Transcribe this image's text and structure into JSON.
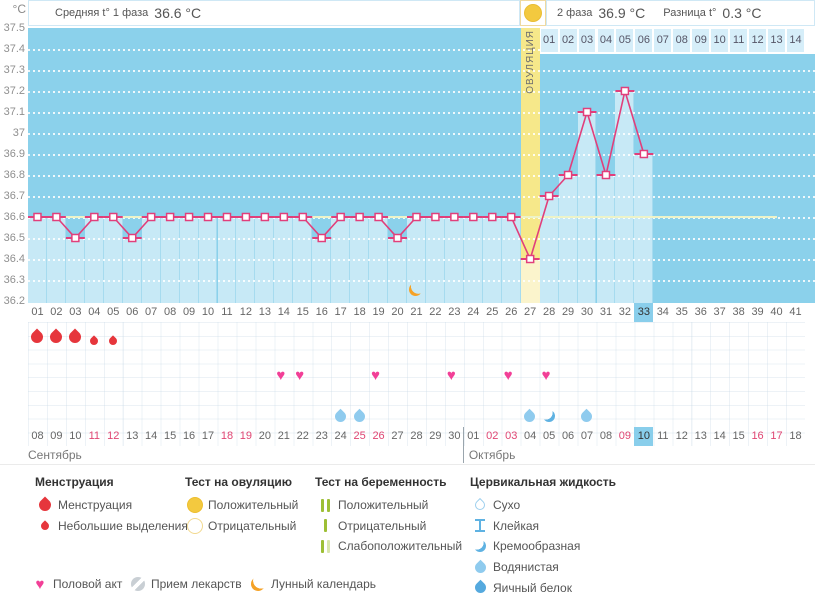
{
  "header": {
    "unit": "°C",
    "avg_phase1_label": "Средняя t° 1 фаза",
    "avg_phase1_value": "36.6 °C",
    "phase2_label": "2 фаза",
    "phase2_value": "36.9 °C",
    "diff_label": "Разница t°",
    "diff_value": "0.3 °C",
    "ovulation_label": "ОВУЛЯЦИЯ"
  },
  "chart_data": {
    "type": "line",
    "title": "Basal body temperature cycle chart",
    "ylabel": "°C",
    "ylim": [
      36.2,
      37.5
    ],
    "yticks": [
      "37.5",
      "37.4",
      "37.3",
      "37.2",
      "37.1",
      "37",
      "36.9",
      "36.8",
      "36.7",
      "36.6",
      "36.5",
      "36.4",
      "36.3",
      "36.2"
    ],
    "total_days": 41,
    "measured_days": 33,
    "values": [
      36.6,
      36.6,
      36.5,
      36.6,
      36.6,
      36.5,
      36.6,
      36.6,
      36.6,
      36.6,
      36.6,
      36.6,
      36.6,
      36.6,
      36.6,
      36.5,
      36.6,
      36.6,
      36.6,
      36.5,
      36.6,
      36.6,
      36.6,
      36.6,
      36.6,
      36.6,
      36.4,
      36.7,
      36.8,
      37.1,
      36.8,
      37.2,
      36.9
    ],
    "coverline_temp": 36.6,
    "ovulation_day": 27,
    "current_day": 33,
    "moon_day": 21,
    "cycle_day_labels": [
      "01",
      "02",
      "03",
      "04",
      "05",
      "06",
      "07",
      "08",
      "09",
      "10",
      "11",
      "12",
      "13",
      "14",
      "15",
      "16",
      "17",
      "18",
      "19",
      "20",
      "21",
      "22",
      "23",
      "24",
      "25",
      "26",
      "27",
      "28",
      "29",
      "30",
      "31",
      "32",
      "33",
      "34",
      "35",
      "36",
      "37",
      "38",
      "39",
      "40",
      "41"
    ],
    "phase2_labels": [
      "01",
      "02",
      "03",
      "04",
      "05",
      "06",
      "07",
      "08",
      "09",
      "10",
      "11",
      "12",
      "13",
      "14"
    ]
  },
  "events": {
    "menstruation_heavy_days": [
      1,
      2,
      3
    ],
    "menstruation_light_days": [
      4,
      5
    ],
    "intercourse_days": [
      14,
      15,
      19,
      23,
      26,
      28
    ],
    "cervical_fluid": [
      {
        "day": 17,
        "type": "watery"
      },
      {
        "day": 18,
        "type": "watery"
      },
      {
        "day": 27,
        "type": "watery"
      },
      {
        "day": 28,
        "type": "creamy"
      },
      {
        "day": 30,
        "type": "watery"
      }
    ]
  },
  "calendar": {
    "sep_label": "Сентябрь",
    "oct_label": "Октябрь",
    "dates": [
      {
        "t": "08"
      },
      {
        "t": "09"
      },
      {
        "t": "10"
      },
      {
        "t": "11",
        "w": 1
      },
      {
        "t": "12",
        "w": 1
      },
      {
        "t": "13"
      },
      {
        "t": "14"
      },
      {
        "t": "15"
      },
      {
        "t": "16"
      },
      {
        "t": "17"
      },
      {
        "t": "18",
        "w": 1
      },
      {
        "t": "19",
        "w": 1
      },
      {
        "t": "20"
      },
      {
        "t": "21"
      },
      {
        "t": "22"
      },
      {
        "t": "23"
      },
      {
        "t": "24"
      },
      {
        "t": "25",
        "w": 1
      },
      {
        "t": "26",
        "w": 1
      },
      {
        "t": "27"
      },
      {
        "t": "28"
      },
      {
        "t": "29"
      },
      {
        "t": "30"
      },
      {
        "t": "01",
        "m": 1
      },
      {
        "t": "02",
        "m": 1,
        "w": 1
      },
      {
        "t": "03",
        "m": 1,
        "w": 1
      },
      {
        "t": "04",
        "m": 1
      },
      {
        "t": "05",
        "m": 1
      },
      {
        "t": "06",
        "m": 1
      },
      {
        "t": "07",
        "m": 1
      },
      {
        "t": "08",
        "m": 1
      },
      {
        "t": "09",
        "m": 1,
        "w": 1
      },
      {
        "t": "10",
        "m": 1,
        "cur": 1
      },
      {
        "t": "11",
        "m": 1
      },
      {
        "t": "12",
        "m": 1
      },
      {
        "t": "13",
        "m": 1
      },
      {
        "t": "14",
        "m": 1
      },
      {
        "t": "15",
        "m": 1
      },
      {
        "t": "16",
        "m": 1,
        "w": 1
      },
      {
        "t": "17",
        "m": 1,
        "w": 1
      },
      {
        "t": "18",
        "m": 1
      }
    ]
  },
  "legend": {
    "sections": [
      {
        "title": "Менструация",
        "items": [
          {
            "icon": "drop-red-large",
            "label": "Менструация"
          },
          {
            "icon": "drop-red-small",
            "label": "Небольшие выделения"
          }
        ]
      },
      {
        "title": "Тест на овуляцию",
        "items": [
          {
            "icon": "circle-yellow-filled",
            "label": "Положительный"
          },
          {
            "icon": "circle-yellow-outline",
            "label": "Отрицательный"
          }
        ]
      },
      {
        "title": "Тест на беременность",
        "items": [
          {
            "icon": "bars-double-green",
            "label": "Положительный"
          },
          {
            "icon": "bar-single-green",
            "label": "Отрицательный"
          },
          {
            "icon": "bars-weak-green",
            "label": "Слабоположительный"
          }
        ]
      },
      {
        "title": "Цервикальная жидкость",
        "items": [
          {
            "icon": "drop-outline",
            "label": "Сухо"
          },
          {
            "icon": "sticky-ibeam",
            "label": "Клейкая"
          },
          {
            "icon": "crescent-drop",
            "label": "Кремообразная"
          },
          {
            "icon": "drop-watery",
            "label": "Водянистая"
          },
          {
            "icon": "drop-eggwhite",
            "label": "Яичный белок"
          }
        ]
      }
    ],
    "footer_items": [
      {
        "icon": "heart",
        "label": "Половой акт"
      },
      {
        "icon": "pill",
        "label": "Прием лекарств"
      },
      {
        "icon": "moon",
        "label": "Лунный календарь"
      }
    ]
  },
  "colors": {
    "plot_bg": "#8bd1eb",
    "fill": "#c7e9f6",
    "fill_separator": "#a6dbef",
    "curve": "#e13f7b",
    "coverline": "#edf3c8",
    "ovulation_band": "#f6e88a",
    "ovulation_band_light": "#fbf4cc",
    "highlight_cell": "#89ceeb",
    "weekend_text": "#e04673",
    "menstruation_red": "#e6363c",
    "heart_pink": "#f23f97",
    "cervical_blue": "#5fb2e2",
    "cervical_light": "#8fcbee",
    "moon_orange": "#f5a226",
    "test_green": "#9dbf35",
    "ovulation_yellow": "#f3c93f"
  }
}
